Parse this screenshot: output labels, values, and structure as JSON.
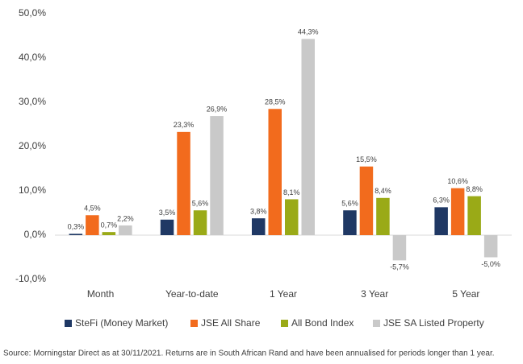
{
  "chart_data": {
    "type": "bar",
    "categories": [
      "Month",
      "Year-to-date",
      "1 Year",
      "3 Year",
      "5 Year"
    ],
    "series": [
      {
        "name": "SteFi (Money Market)",
        "color": "#1f3864",
        "values": [
          0.3,
          3.5,
          3.8,
          5.6,
          6.3
        ],
        "value_labels": [
          "0,3%",
          "3,5%",
          "3,8%",
          "5,6%",
          "6,3%"
        ]
      },
      {
        "name": "JSE All Share",
        "color": "#f26b1d",
        "values": [
          4.5,
          23.3,
          28.5,
          15.5,
          10.6
        ],
        "value_labels": [
          "4,5%",
          "23,3%",
          "28,5%",
          "15,5%",
          "10,6%"
        ]
      },
      {
        "name": "All Bond Index",
        "color": "#9aaa17",
        "values": [
          0.7,
          5.6,
          8.1,
          8.4,
          8.8
        ],
        "value_labels": [
          "0,7%",
          "5,6%",
          "8,1%",
          "8,4%",
          "8,8%"
        ]
      },
      {
        "name": "JSE SA Listed Property",
        "color": "#c9c9c9",
        "values": [
          2.2,
          26.9,
          44.3,
          -5.7,
          -5.0
        ],
        "value_labels": [
          "2,2%",
          "26,9%",
          "44,3%",
          "-5,7%",
          "-5,0%"
        ]
      }
    ],
    "ylim": [
      -10,
      50
    ],
    "yticks": [
      {
        "value": -10,
        "label": "-10,0%"
      },
      {
        "value": 0,
        "label": "0,0%"
      },
      {
        "value": 10,
        "label": "10,0%"
      },
      {
        "value": 20,
        "label": "20,0%"
      },
      {
        "value": 30,
        "label": "30,0%"
      },
      {
        "value": 40,
        "label": "40,0%"
      },
      {
        "value": 50,
        "label": "50,0%"
      }
    ],
    "source": "Source: Morningstar Direct as at 30/11/2021. Returns are in South African Rand and have been annualised for periods longer than 1 year."
  }
}
